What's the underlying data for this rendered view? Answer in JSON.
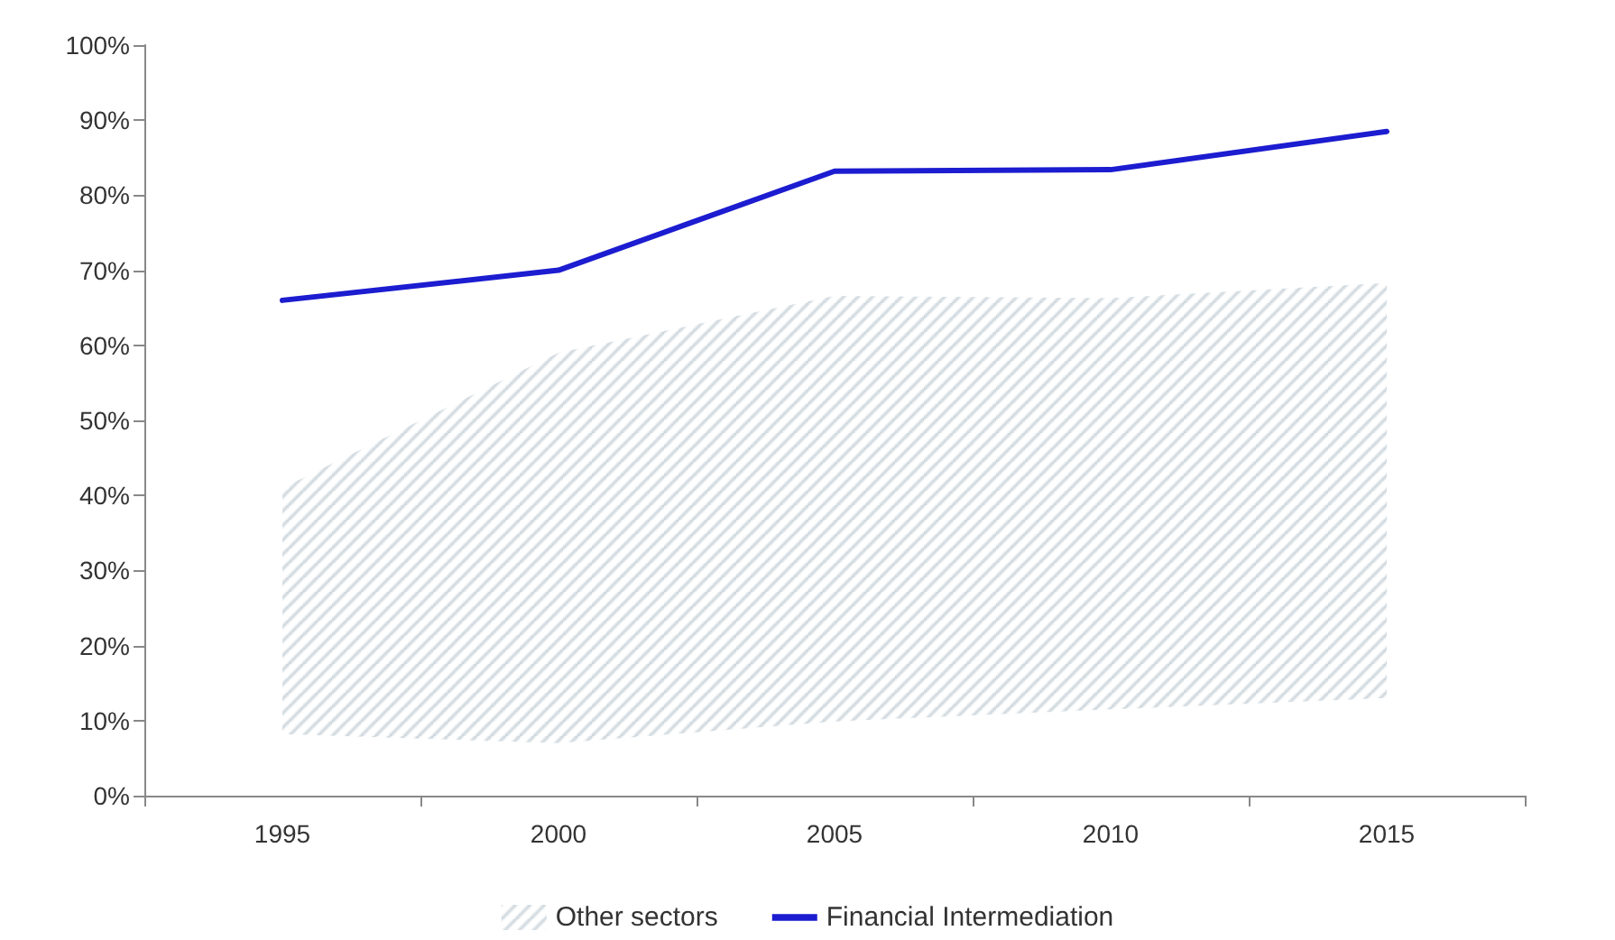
{
  "chart_data": {
    "type": "line",
    "categories": [
      "1995",
      "2000",
      "2005",
      "2010",
      "2015"
    ],
    "series": [
      {
        "name": "Other sectors",
        "type": "area",
        "color": "#c9d3da",
        "values": [
          null,
          null,
          null,
          null,
          null
        ],
        "lower": [
          8.2,
          7,
          9.9,
          11.5,
          13
        ],
        "upper": [
          41,
          59,
          66.6,
          66.3,
          68.3
        ]
      },
      {
        "name": "Financial Intermediation",
        "color": "#1c1cd0",
        "values": [
          66,
          70,
          83.2,
          83.4,
          88.5
        ]
      }
    ],
    "ylim": [
      0,
      100
    ],
    "yticks": [
      {
        "value": 0,
        "label": "0%"
      },
      {
        "value": 10,
        "label": "10%"
      },
      {
        "value": 20,
        "label": "20%"
      },
      {
        "value": 30,
        "label": "30%"
      },
      {
        "value": 40,
        "label": "40%"
      },
      {
        "value": 50,
        "label": "50%"
      },
      {
        "value": 60,
        "label": "60%"
      },
      {
        "value": 70,
        "label": "70%"
      },
      {
        "value": 80,
        "label": "80%"
      },
      {
        "value": 90,
        "label": "90%"
      },
      {
        "value": 100,
        "label": "100%"
      }
    ],
    "grid": false,
    "legend": "bottom",
    "marker": "none",
    "line_style": "solid"
  }
}
